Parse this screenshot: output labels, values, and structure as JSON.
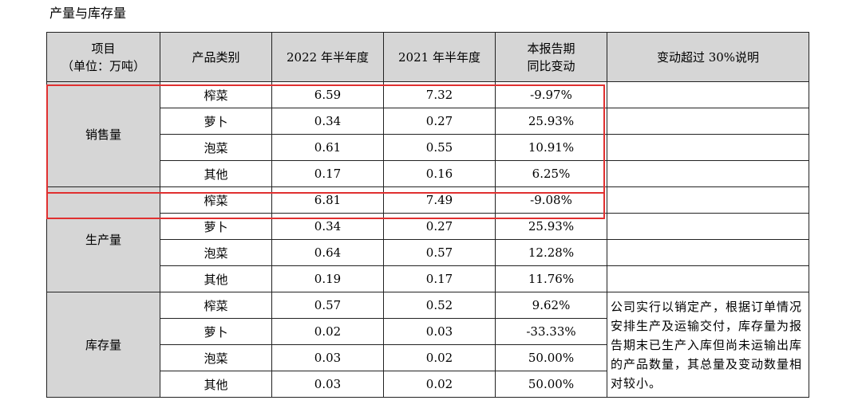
{
  "caption": "产量与库存量",
  "headers": {
    "item_line1": "项目",
    "item_line2": "（单位：万吨）",
    "category": "产品类别",
    "y2022": "2022 年半年度",
    "y2021": "2021 年半年度",
    "change_line1": "本报告期",
    "change_line2": "同比变动",
    "note": "变动超过 30%说明"
  },
  "groups": [
    {
      "label": "销售量",
      "rows": [
        {
          "category": "榨菜",
          "y2022": "6.59",
          "y2021": "7.32",
          "change": "-9.97%"
        },
        {
          "category": "萝卜",
          "y2022": "0.34",
          "y2021": "0.27",
          "change": "25.93%"
        },
        {
          "category": "泡菜",
          "y2022": "0.61",
          "y2021": "0.55",
          "change": "10.91%"
        },
        {
          "category": "其他",
          "y2022": "0.17",
          "y2021": "0.16",
          "change": "6.25%"
        }
      ]
    },
    {
      "label": "生产量",
      "rows": [
        {
          "category": "榨菜",
          "y2022": "6.81",
          "y2021": "7.49",
          "change": "-9.08%"
        },
        {
          "category": "萝卜",
          "y2022": "0.34",
          "y2021": "0.27",
          "change": "25.93%"
        },
        {
          "category": "泡菜",
          "y2022": "0.64",
          "y2021": "0.57",
          "change": "12.28%"
        },
        {
          "category": "其他",
          "y2022": "0.19",
          "y2021": "0.17",
          "change": "11.76%"
        }
      ]
    },
    {
      "label": "库存量",
      "rows": [
        {
          "category": "榨菜",
          "y2022": "0.57",
          "y2021": "0.52",
          "change": "9.62%"
        },
        {
          "category": "萝卜",
          "y2022": "0.02",
          "y2021": "0.03",
          "change": "-33.33%"
        },
        {
          "category": "泡菜",
          "y2022": "0.03",
          "y2021": "0.02",
          "change": "50.00%"
        },
        {
          "category": "其他",
          "y2022": "0.03",
          "y2021": "0.02",
          "change": "50.00%"
        }
      ]
    }
  ],
  "inventory_note": "公司实行以销定产，根据订单情况安排生产及运输交付，库存量为报告期末已生产入库但尚未运输出库的产品数量，其总量及变动数量相对较小。",
  "highlight_color": "#e03030"
}
